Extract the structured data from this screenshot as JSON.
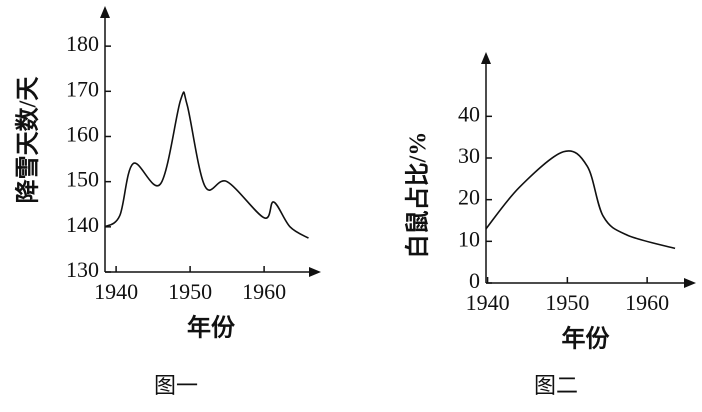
{
  "chart_data": [
    {
      "type": "line",
      "caption": "图一",
      "x_label": "年份",
      "y_label": "降雪天数/天",
      "x": [
        1938.5,
        1940.5,
        1942.3,
        1946,
        1948.7,
        1949.6,
        1952,
        1955,
        1960,
        1961.3,
        1963.5,
        1966
      ],
      "values": [
        140,
        142.5,
        154,
        149.5,
        168,
        167,
        149,
        150,
        142,
        145.5,
        140,
        137.5
      ],
      "color": "#111111",
      "xlim": [
        1938.5,
        1968.5
      ],
      "ylim": [
        130,
        188
      ],
      "xticks": [
        1940,
        1950,
        1960
      ],
      "yticks": [
        130,
        140,
        150,
        160,
        170,
        180
      ]
    },
    {
      "type": "line",
      "caption": "图二",
      "x_label": "年份",
      "y_label": "白鼠占比/%",
      "x": [
        1939.8,
        1944,
        1949.5,
        1952.5,
        1954.5,
        1957.5,
        1963.5
      ],
      "values": [
        13,
        23,
        31.5,
        28,
        16,
        11.5,
        8.3
      ],
      "color": "#111111",
      "xlim": [
        1939.8,
        1966
      ],
      "ylim": [
        0,
        54
      ],
      "xticks": [
        1940,
        1950,
        1960
      ],
      "yticks": [
        0,
        10,
        20,
        30,
        40
      ]
    }
  ]
}
